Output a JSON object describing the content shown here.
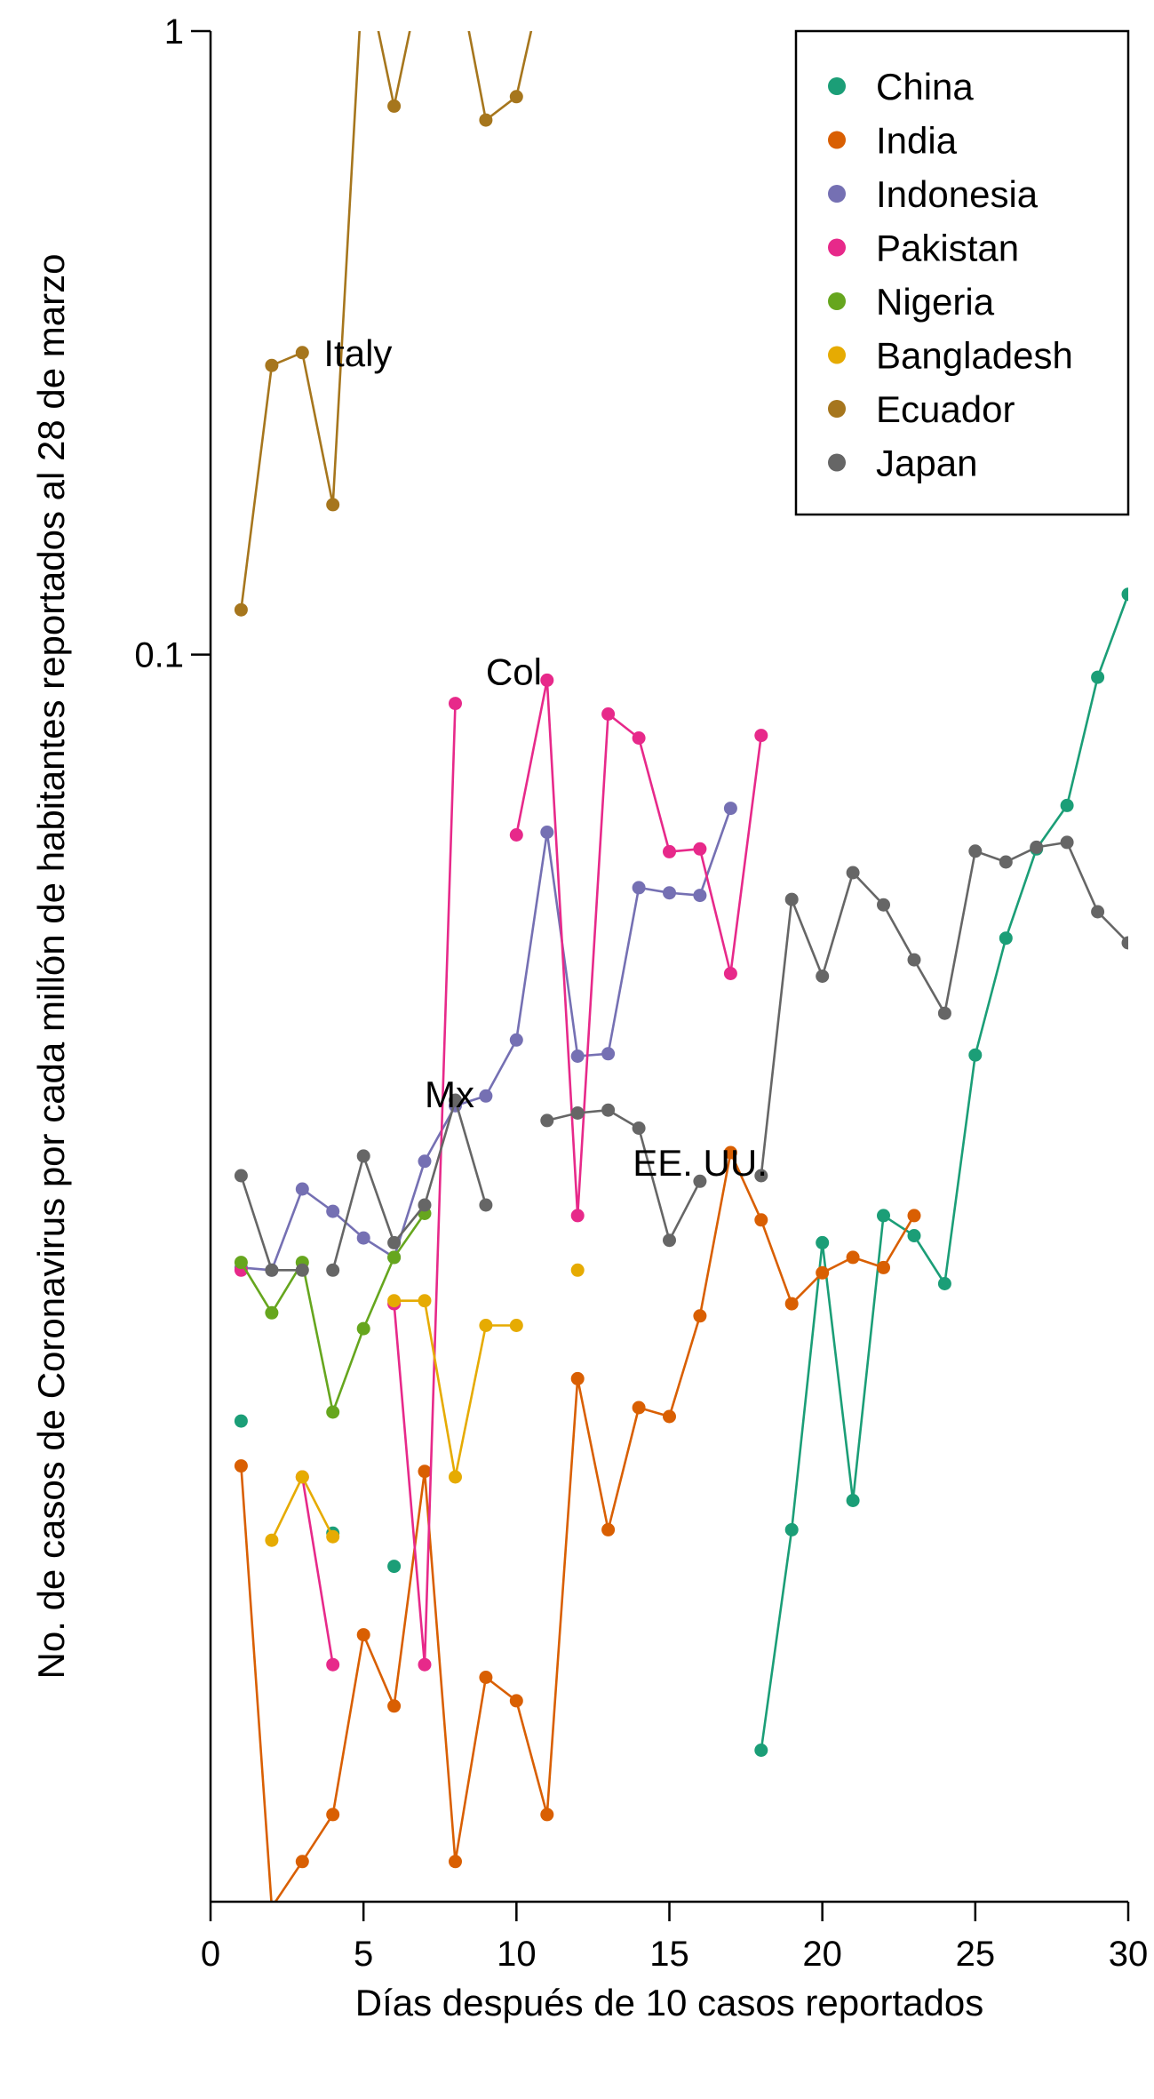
{
  "chart_data": {
    "type": "line",
    "xlabel": "Días después de 10 casos reportados",
    "ylabel": "No. de casos de Coronavirus por cada millón de habitantes reportados al 28 de marzo",
    "xlim": [
      0,
      30
    ],
    "ylim": [
      0.001,
      1
    ],
    "yscale": "log",
    "x_ticks": [
      0,
      5,
      10,
      15,
      20,
      25,
      30
    ],
    "x_tick_labels": [
      "0",
      "5",
      "10",
      "15",
      "20",
      "25",
      "30"
    ],
    "y_ticks": [
      1,
      0.1
    ],
    "y_tick_labels": [
      "1",
      "0.1"
    ],
    "grid": false,
    "legend_position": "top-right",
    "annotations": [
      {
        "text": "Italy",
        "x": 3.7,
        "y": 0.29
      },
      {
        "text": "Col",
        "x": 9.0,
        "y": 0.0895
      },
      {
        "text": "Mx",
        "x": 7.0,
        "y": 0.0188
      },
      {
        "text": "EE. UU.",
        "x": 13.8,
        "y": 0.0146
      }
    ],
    "series": [
      {
        "name": "China",
        "color": "#1B9E77",
        "segments": [
          [
            [
              1,
              0.0059
            ]
          ],
          [
            [
              4,
              0.0039
            ]
          ],
          [
            [
              6,
              0.00345
            ]
          ],
          [
            [
              18,
              0.00175
            ],
            [
              19,
              0.00395
            ],
            [
              20,
              0.0114
            ],
            [
              21,
              0.0044
            ],
            [
              22,
              0.0126
            ],
            [
              23,
              0.0117
            ],
            [
              24,
              0.0098
            ],
            [
              25,
              0.0228
            ],
            [
              26,
              0.0351
            ],
            [
              27,
              0.0488
            ],
            [
              28,
              0.0573
            ],
            [
              29,
              0.092
            ],
            [
              30,
              0.125
            ]
          ]
        ]
      },
      {
        "name": "India",
        "color": "#D95F02",
        "segments": [
          [
            [
              1,
              0.005
            ],
            [
              2,
              0.00098
            ],
            [
              3,
              0.00116
            ],
            [
              4,
              0.00138
            ],
            [
              5,
              0.00268
            ],
            [
              6,
              0.00206
            ],
            [
              7,
              0.0049
            ],
            [
              8,
              0.00116
            ],
            [
              9,
              0.00229
            ],
            [
              10,
              0.0021
            ],
            [
              11,
              0.00138
            ],
            [
              12,
              0.0069
            ],
            [
              13,
              0.00395
            ],
            [
              14,
              0.0062
            ],
            [
              15,
              0.006
            ],
            [
              16,
              0.0087
            ],
            [
              17,
              0.0159
            ],
            [
              18,
              0.0124
            ],
            [
              19,
              0.0091
            ],
            [
              20,
              0.0102
            ],
            [
              21,
              0.0108
            ],
            [
              22,
              0.0104
            ],
            [
              23,
              0.0126
            ]
          ]
        ]
      },
      {
        "name": "Indonesia",
        "color": "#7570B3",
        "segments": [
          [
            [
              1,
              0.0104
            ],
            [
              2,
              0.0103
            ],
            [
              3,
              0.0139
            ],
            [
              4,
              0.0128
            ],
            [
              5,
              0.0116
            ],
            [
              6,
              0.0108
            ],
            [
              7,
              0.0154
            ],
            [
              8,
              0.0189
            ],
            [
              9,
              0.0196
            ],
            [
              10,
              0.0241
            ],
            [
              11,
              0.0519
            ],
            [
              12,
              0.0227
            ],
            [
              13,
              0.0229
            ],
            [
              14,
              0.0423
            ],
            [
              15,
              0.0415
            ],
            [
              16,
              0.0411
            ],
            [
              17,
              0.0567
            ]
          ]
        ]
      },
      {
        "name": "Pakistan",
        "color": "#E7298A",
        "segments": [
          [
            [
              1,
              0.0103
            ]
          ],
          [
            [
              3,
              0.0048
            ],
            [
              4,
              0.0024
            ]
          ],
          [
            [
              6,
              0.0091
            ],
            [
              7,
              0.0024
            ],
            [
              8,
              0.0835
            ]
          ],
          [
            [
              10,
              0.0514
            ],
            [
              11,
              0.091
            ],
            [
              12,
              0.0126
            ],
            [
              13,
              0.0803
            ],
            [
              14,
              0.0735
            ],
            [
              15,
              0.0483
            ],
            [
              16,
              0.0488
            ],
            [
              17,
              0.0308
            ],
            [
              18,
              0.0742
            ]
          ]
        ]
      },
      {
        "name": "Nigeria",
        "color": "#66A61E",
        "segments": [
          [
            [
              1,
              0.0106
            ],
            [
              2,
              0.0088
            ],
            [
              3,
              0.0106
            ],
            [
              4,
              0.0061
            ],
            [
              5,
              0.0083
            ],
            [
              6,
              0.0108
            ],
            [
              7,
              0.0127
            ]
          ]
        ]
      },
      {
        "name": "Bangladesh",
        "color": "#E6AB02",
        "segments": [
          [
            [
              2,
              0.0038
            ],
            [
              3,
              0.0048
            ],
            [
              4,
              0.00385
            ]
          ],
          [
            [
              6,
              0.0092
            ],
            [
              7,
              0.0092
            ],
            [
              8,
              0.0048
            ],
            [
              9,
              0.0084
            ],
            [
              10,
              0.0084
            ]
          ],
          [
            [
              12,
              0.0103
            ]
          ]
        ]
      },
      {
        "name": "Ecuador",
        "color": "#A6761D",
        "segments": [
          [
            [
              1,
              0.118
            ],
            [
              2,
              0.291
            ],
            [
              3,
              0.305
            ],
            [
              4,
              0.174
            ],
            [
              5,
              1.3
            ],
            [
              6,
              0.758
            ],
            [
              7,
              1.3
            ],
            [
              8,
              1.3
            ],
            [
              9,
              0.72
            ],
            [
              10,
              0.785
            ],
            [
              11,
              1.3
            ]
          ]
        ]
      },
      {
        "name": "Japan",
        "color": "#666666",
        "segments": [
          [
            [
              1,
              0.0146
            ],
            [
              2,
              0.0103
            ],
            [
              3,
              0.0103
            ]
          ],
          [
            [
              4,
              0.0103
            ],
            [
              5,
              0.0157
            ],
            [
              6,
              0.0114
            ],
            [
              7,
              0.0131
            ],
            [
              8,
              0.0193
            ],
            [
              9,
              0.0131
            ]
          ],
          [
            [
              11,
              0.0179
            ],
            [
              12,
              0.0184
            ],
            [
              13,
              0.0186
            ],
            [
              14,
              0.0174
            ],
            [
              15,
              0.0115
            ],
            [
              16,
              0.0143
            ]
          ],
          [
            [
              18,
              0.0146
            ],
            [
              19,
              0.0405
            ],
            [
              20,
              0.0305
            ],
            [
              21,
              0.0447
            ],
            [
              22,
              0.0397
            ],
            [
              23,
              0.0324
            ],
            [
              24,
              0.0266
            ],
            [
              25,
              0.0484
            ],
            [
              26,
              0.0465
            ],
            [
              27,
              0.0491
            ],
            [
              28,
              0.05
            ],
            [
              29,
              0.0387
            ],
            [
              30,
              0.0345
            ]
          ]
        ]
      }
    ]
  }
}
